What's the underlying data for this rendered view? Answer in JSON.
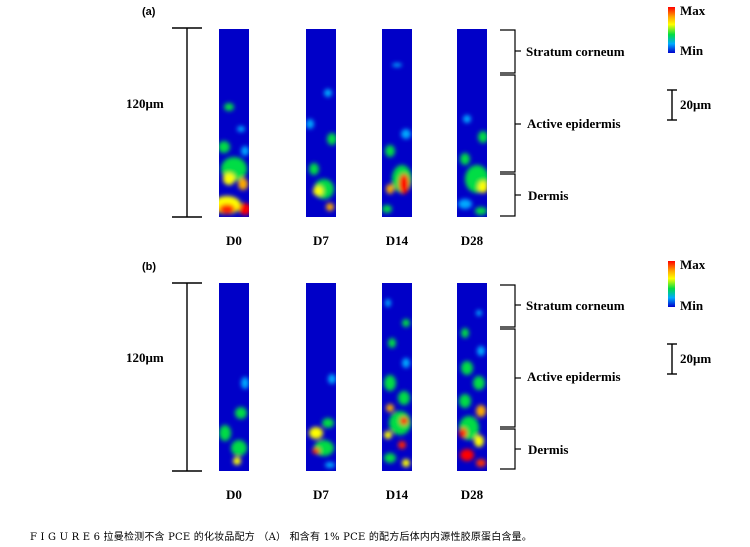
{
  "panels": [
    {
      "label": "(a)",
      "scale": "120μm",
      "bar_scale": "20μm",
      "days": [
        "D0",
        "D7",
        "D14",
        "D28"
      ],
      "layers": [
        "Stratum corneum",
        "Active epidermis",
        "Dermis"
      ],
      "legend": {
        "max": "Max",
        "min": "Min"
      }
    },
    {
      "label": "(b)",
      "scale": "120μm",
      "bar_scale": "20μm",
      "days": [
        "D0",
        "D7",
        "D14",
        "D28"
      ],
      "layers": [
        "Stratum corneum",
        "Active epidermis",
        "Dermis"
      ],
      "legend": {
        "max": "Max",
        "min": "Min"
      }
    }
  ],
  "caption": "F I G U R E 6 拉曼检测不含 PCE 的化妆品配方 （A） 和含有 1% PCE 的配方后体内内源性胶原蛋白含量。",
  "colors": {
    "background": "#0000c8",
    "low": "#00aaff",
    "mid": "#00dd44",
    "high": "#ffff00",
    "peak": "#ff0000"
  }
}
